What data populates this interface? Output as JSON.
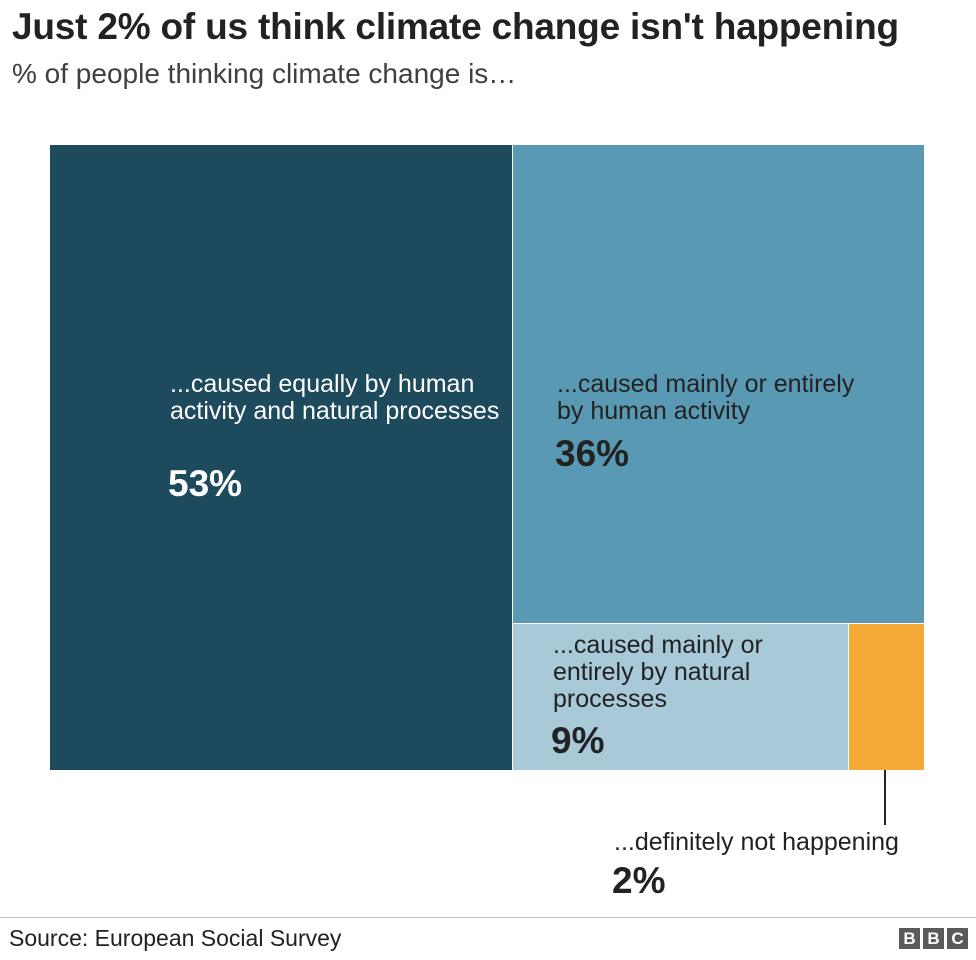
{
  "title": "Just 2% of us think climate change isn't happening",
  "subtitle": "% of people thinking climate change is…",
  "chart_data": {
    "type": "treemap",
    "title": "Just 2% of us think climate change isn't happening",
    "subtitle": "% of people thinking climate change is…",
    "items": [
      {
        "label": "...caused equally by human activity and natural processes",
        "value": 53,
        "display": "53%",
        "color": "#1e4a5e"
      },
      {
        "label": "...caused mainly or entirely by human activity",
        "value": 36,
        "display": "36%",
        "color": "#5a99b3"
      },
      {
        "label": "...caused mainly or entirely by natural processes",
        "value": 9,
        "display": "9%",
        "color": "#a8cad8"
      },
      {
        "label": "...definitely not happening",
        "value": 2,
        "display": "2%",
        "color": "#f4a836"
      }
    ]
  },
  "footer": {
    "source": "Source: European Social Survey",
    "logo_letters": [
      "B",
      "B",
      "C"
    ]
  }
}
